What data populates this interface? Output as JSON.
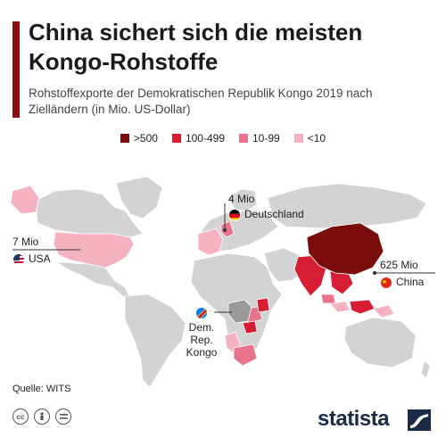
{
  "header": {
    "title": "China sichert sich die meisten Kongo-Rohstoffe",
    "subtitle": "Rohstoffexporte der Demokratischen Republik Kongo 2019 nach Zielländern (in Mio. US-Dollar)"
  },
  "legend": [
    {
      "label": ">500",
      "color": "#7a0c0c"
    },
    {
      "label": "100-499",
      "color": "#d81e35"
    },
    {
      "label": "10-99",
      "color": "#e7748a"
    },
    {
      "label": "<10",
      "color": "#f5b3c1"
    }
  ],
  "map": {
    "land_color": "#d3d3d3",
    "exporter_color": "#9a9a9a",
    "exporter_label": "Dem. Rep. Kongo",
    "exporter_label_lines": [
      "Dem.",
      "Rep.",
      "Kongo"
    ],
    "callouts": {
      "usa": {
        "value": "7 Mio",
        "country": "USA",
        "flag_icon": "us-flag-icon"
      },
      "germany": {
        "value": "4 Mio",
        "country": "Deutschland",
        "flag_icon": "german-flag-icon"
      },
      "china": {
        "value": "625 Mio",
        "country": "China",
        "flag_icon": "chinese-flag-icon"
      }
    }
  },
  "footer": {
    "source": "Quelle: WITS",
    "license_icons": [
      "cc-icon",
      "by-icon",
      "nd-icon"
    ],
    "brand": "statista"
  }
}
